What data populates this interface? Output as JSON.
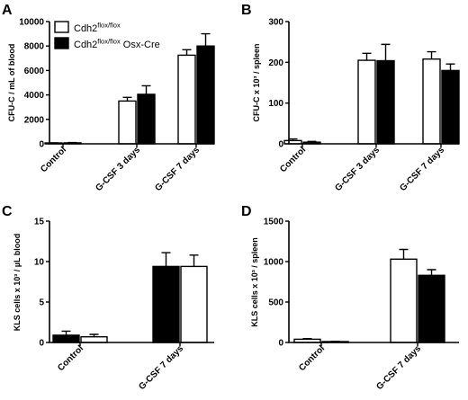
{
  "legend": {
    "series_a": {
      "base": "Cdh2",
      "sup": "flox/flox",
      "suffix": "",
      "fill": "#ffffff"
    },
    "series_b": {
      "base": "Cdh2",
      "sup": "flox/flox",
      "suffix": " Osx-Cre",
      "fill": "#000000"
    }
  },
  "chart_data": [
    {
      "panel": "A",
      "type": "bar",
      "ylabel": "CFU-C / mL of blood",
      "ylim": [
        0,
        10000
      ],
      "yticks": [
        0,
        2000,
        4000,
        6000,
        8000,
        10000
      ],
      "categories": [
        "Control",
        "G-CSF 3 days",
        "G-CSF 7 days"
      ],
      "series": [
        {
          "fill": "#ffffff",
          "values": [
            60,
            3500,
            7250
          ],
          "errors": [
            20,
            300,
            450
          ]
        },
        {
          "fill": "#000000",
          "values": [
            80,
            4050,
            8000
          ],
          "errors": [
            25,
            700,
            1000
          ]
        }
      ]
    },
    {
      "panel": "B",
      "type": "bar",
      "ylabel": "CFU-C x 10³ / spleen",
      "ylim": [
        0,
        300
      ],
      "yticks": [
        0,
        100,
        200,
        300
      ],
      "categories": [
        "Control",
        "G-CSF 3 days",
        "G-CSF 7 days"
      ],
      "series": [
        {
          "fill": "#ffffff",
          "values": [
            8,
            205,
            208
          ],
          "errors": [
            4,
            17,
            18
          ]
        },
        {
          "fill": "#000000",
          "values": [
            4,
            204,
            180
          ],
          "errors": [
            2,
            40,
            16
          ]
        }
      ]
    },
    {
      "panel": "C",
      "type": "bar",
      "ylabel": "KLS cells x 10³ / µL blood",
      "ylim": [
        0,
        15
      ],
      "yticks": [
        0,
        5,
        10,
        15
      ],
      "categories": [
        "Control",
        "G-CSF 7 days"
      ],
      "series": [
        {
          "fill": "#000000",
          "values": [
            0.9,
            9.4
          ],
          "errors": [
            0.5,
            1.7
          ]
        },
        {
          "fill": "#ffffff",
          "values": [
            0.7,
            9.4
          ],
          "errors": [
            0.3,
            1.4
          ]
        }
      ]
    },
    {
      "panel": "D",
      "type": "bar",
      "ylabel": "KLS cells x 10³ / spleen",
      "ylim": [
        0,
        1500
      ],
      "yticks": [
        0,
        500,
        1000,
        1500
      ],
      "categories": [
        "Control",
        "G-CSF 7 days"
      ],
      "series": [
        {
          "fill": "#ffffff",
          "values": [
            40,
            1030
          ],
          "errors": [
            8,
            120
          ]
        },
        {
          "fill": "#000000",
          "values": [
            10,
            830
          ],
          "errors": [
            4,
            70
          ]
        }
      ]
    }
  ]
}
